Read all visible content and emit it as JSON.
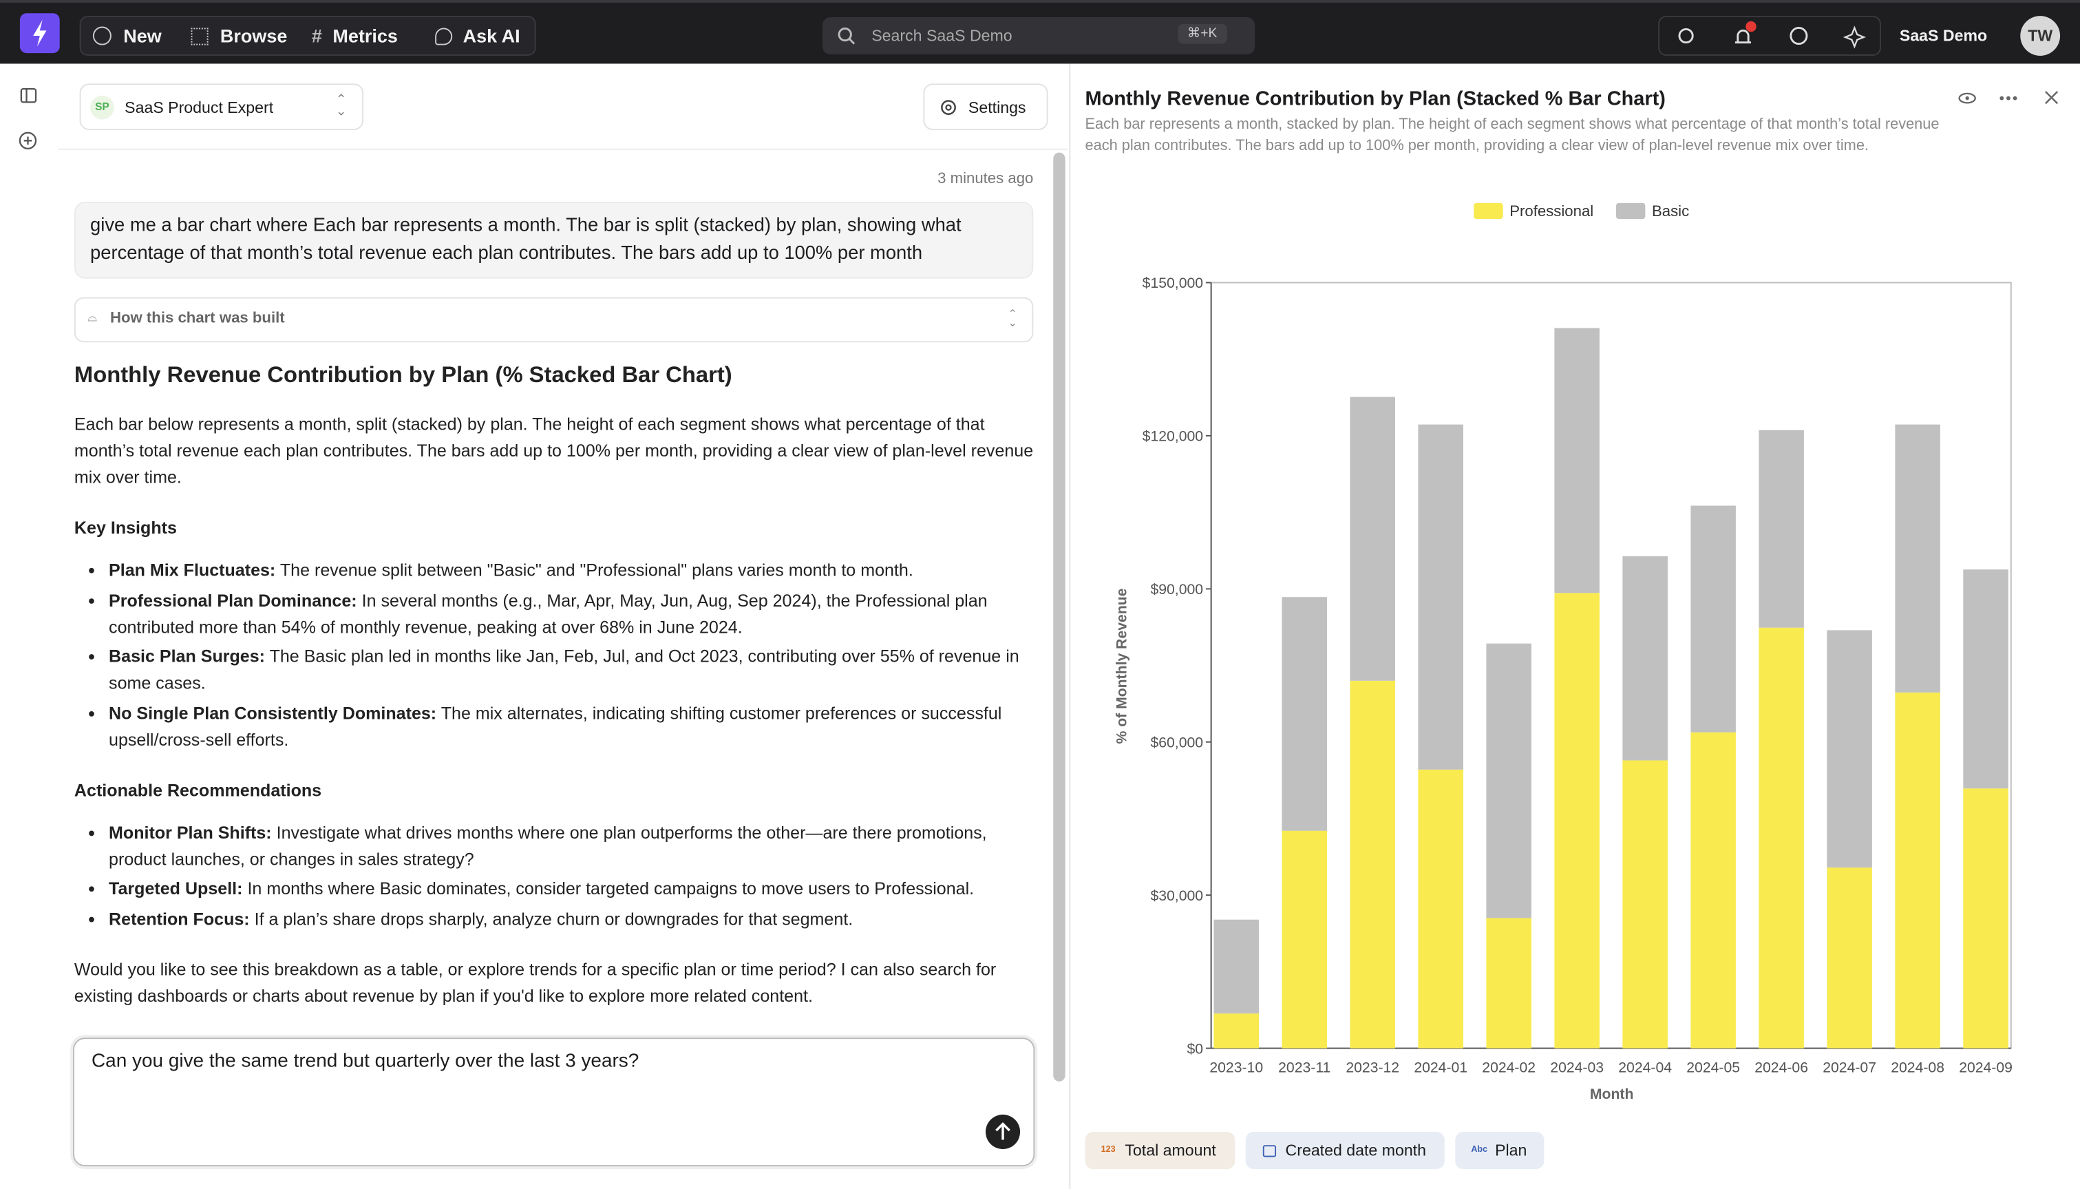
{
  "nav": {
    "items": [
      "New",
      "Browse",
      "Metrics",
      "Ask AI"
    ],
    "search": {
      "placeholder": "Search SaaS Demo",
      "shortcut": "⌘+K"
    },
    "workspace": "SaaS Demo",
    "avatar": "TW"
  },
  "chat": {
    "agent": {
      "badge": "SP",
      "name": "SaaS Product Expert"
    },
    "settings": "Settings",
    "timestamp": "3 minutes ago",
    "user_message": "give me a bar chart where Each bar represents a month. The bar is split (stacked) by plan, showing what percentage of that month’s total revenue each plan contributes. The bars add up to 100% per month",
    "build_toggle": "How this chart was built",
    "response": {
      "heading": "Monthly Revenue Contribution by Plan (% Stacked Bar Chart)",
      "intro": "Each bar below represents a month, split (stacked) by plan. The height of each segment shows what percentage of that month’s total revenue each plan contributes. The bars add up to 100% per month, providing a clear view of plan-level revenue mix over time.",
      "insights_heading": "Key Insights",
      "insights": [
        {
          "label": "Plan Mix Fluctuates:",
          "text": "The revenue split between \"Basic\" and \"Professional\" plans varies month to month."
        },
        {
          "label": "Professional Plan Dominance:",
          "text": "In several months (e.g., Mar, Apr, May, Jun, Aug, Sep 2024), the Professional plan contributed more than 54% of monthly revenue, peaking at over 68% in June 2024."
        },
        {
          "label": "Basic Plan Surges:",
          "text": "The Basic plan led in months like Jan, Feb, Jul, and Oct 2023, contributing over 55% of revenue in some cases."
        },
        {
          "label": "No Single Plan Consistently Dominates:",
          "text": "The mix alternates, indicating shifting customer preferences or successful upsell/cross-sell efforts."
        }
      ],
      "recommendations_heading": "Actionable Recommendations",
      "recommendations": [
        {
          "label": "Monitor Plan Shifts:",
          "text": "Investigate what drives months where one plan outperforms the other—are there promotions, product launches, or changes in sales strategy?"
        },
        {
          "label": "Targeted Upsell:",
          "text": "In months where Basic dominates, consider targeted campaigns to move users to Professional."
        },
        {
          "label": "Retention Focus:",
          "text": "If a plan’s share drops sharply, analyze churn or downgrades for that segment."
        }
      ],
      "closing": "Would you like to see this breakdown as a table, or explore trends for a specific plan or time period? I can also search for existing dashboards or charts about revenue by plan if you'd like to explore more related content."
    },
    "input": "Can you give the same trend but quarterly over the last 3 years?"
  },
  "chart_panel": {
    "fields": [
      {
        "icon": "123",
        "label": "Total amount"
      },
      {
        "label": "Created date month"
      },
      {
        "icon": "Abc",
        "label": "Plan"
      }
    ]
  },
  "chart_data": {
    "type": "stacked_bar",
    "title": "Monthly Revenue Contribution by Plan (Stacked % Bar Chart)",
    "subtitle": "Each bar represents a month, stacked by plan. The height of each segment shows what percentage of that month’s total revenue each plan contributes. The bars add up to 100% per month, providing a clear view of plan-level revenue mix over time.",
    "x_label": "Month",
    "y_label": "% of Monthly Revenue",
    "categories": [
      "2023-10",
      "2023-11",
      "2023-12",
      "2024-01",
      "2024-02",
      "2024-03",
      "2024-04",
      "2024-05",
      "2024-06",
      "2024-07",
      "2024-08",
      "2024-09"
    ],
    "series": [
      {
        "name": "Professional",
        "color": "#f9ea4f",
        "values": [
          6800,
          42600,
          72000,
          54600,
          25500,
          89200,
          56400,
          61900,
          82400,
          35400,
          69700,
          50900
        ]
      },
      {
        "name": "Basic",
        "color": "#c0c0c0",
        "values": [
          18400,
          45800,
          55600,
          67600,
          53800,
          51900,
          40000,
          44400,
          38700,
          46500,
          52500,
          42900
        ]
      }
    ],
    "ylim": [
      0,
      150000
    ],
    "yticks": [
      {
        "value": 0,
        "label": "$0"
      },
      {
        "value": 30000,
        "label": "$30,000"
      },
      {
        "value": 60000,
        "label": "$60,000"
      },
      {
        "value": 90000,
        "label": "$90,000"
      },
      {
        "value": 120000,
        "label": "$120,000"
      },
      {
        "value": 150000,
        "label": "$150,000"
      }
    ],
    "grid": false,
    "legend": "top"
  }
}
